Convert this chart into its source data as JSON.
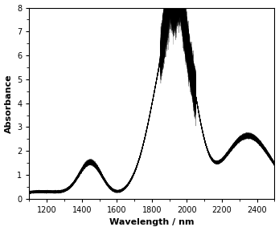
{
  "title": "",
  "xlabel": "Wavelength / nm",
  "ylabel": "Absorbance",
  "xlim": [
    1100,
    2500
  ],
  "ylim": [
    0,
    8
  ],
  "xticks": [
    1200,
    1400,
    1600,
    1800,
    2000,
    2200,
    2400
  ],
  "yticks": [
    0,
    1,
    2,
    3,
    4,
    5,
    6,
    7,
    8
  ],
  "line_color": "#000000",
  "background_color": "#ffffff",
  "figsize": [
    3.47,
    2.88
  ],
  "dpi": 100,
  "n_traces": 80
}
